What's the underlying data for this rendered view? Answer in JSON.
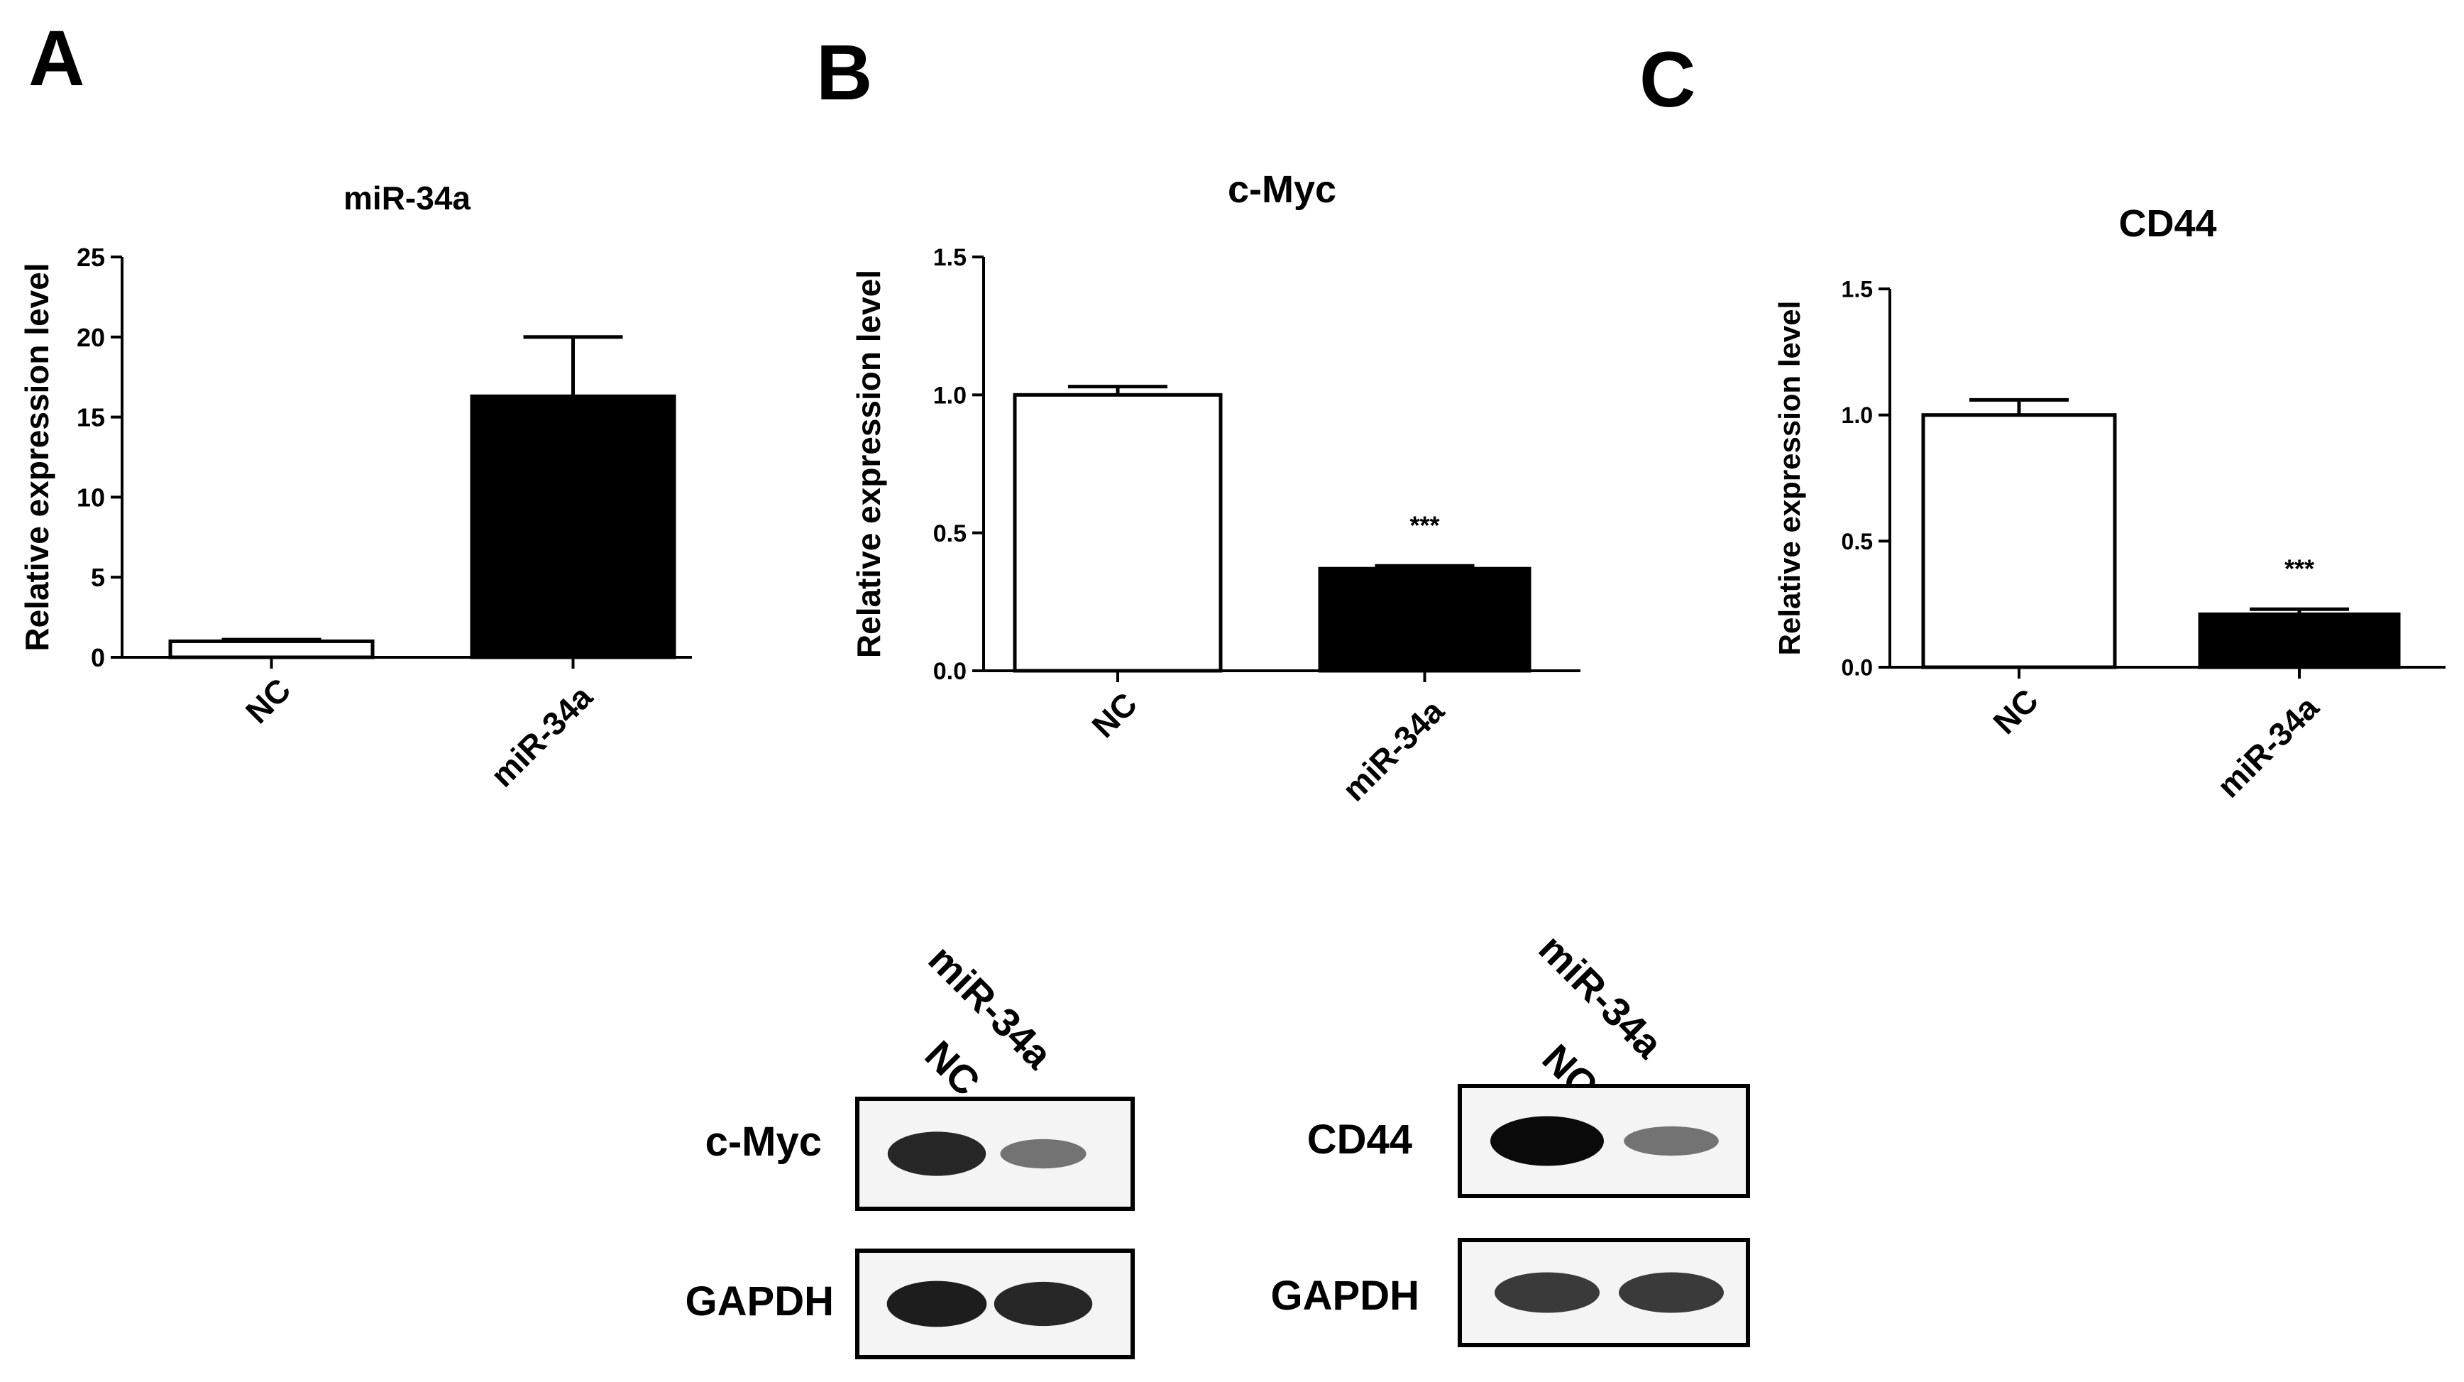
{
  "panels": [
    {
      "letter": "A"
    },
    {
      "letter": "B"
    },
    {
      "letter": "C"
    }
  ],
  "chart_data": [
    {
      "type": "bar",
      "title": "miR-34a",
      "xlabel": "",
      "ylabel": "Relative expression level",
      "categories": [
        "NC",
        "miR-34a"
      ],
      "values": [
        1.0,
        16.3
      ],
      "errors": [
        0.1,
        3.7
      ],
      "bar_colors": [
        "#ffffff",
        "#000000"
      ],
      "significance": [
        "",
        ""
      ],
      "ylim": [
        0,
        25
      ],
      "yticks": [
        0,
        5,
        10,
        15,
        20,
        25
      ],
      "ytick_labels": [
        "0",
        "5",
        "10",
        "15",
        "20",
        "25"
      ],
      "grid": false
    },
    {
      "type": "bar",
      "title": "c-Myc",
      "xlabel": "",
      "ylabel": "Relative expression level",
      "categories": [
        "NC",
        "miR-34a"
      ],
      "values": [
        1.0,
        0.37
      ],
      "errors": [
        0.03,
        0.01
      ],
      "bar_colors": [
        "#ffffff",
        "#000000"
      ],
      "significance": [
        "",
        "***"
      ],
      "ylim": [
        0,
        1.5
      ],
      "yticks": [
        0,
        0.5,
        1.0,
        1.5
      ],
      "ytick_labels": [
        "0.0",
        "0.5",
        "1.0",
        "1.5"
      ],
      "grid": false
    },
    {
      "type": "bar",
      "title": "CD44",
      "xlabel": "",
      "ylabel": "Relative expression level",
      "categories": [
        "NC",
        "miR-34a"
      ],
      "values": [
        1.0,
        0.21
      ],
      "errors": [
        0.06,
        0.02
      ],
      "bar_colors": [
        "#ffffff",
        "#000000"
      ],
      "significance": [
        "",
        "***"
      ],
      "ylim": [
        0,
        1.5
      ],
      "yticks": [
        0,
        0.5,
        1.0,
        1.5
      ],
      "ytick_labels": [
        "0.0",
        "0.5",
        "1.0",
        "1.5"
      ],
      "grid": false
    }
  ],
  "blots": [
    {
      "lanes": [
        "NC",
        "miR-34a"
      ],
      "rows": [
        {
          "label": "c-Myc",
          "band_intensity": [
            0.85,
            0.45
          ]
        },
        {
          "label": "GAPDH",
          "band_intensity": [
            0.9,
            0.85
          ]
        }
      ]
    },
    {
      "lanes": [
        "NC",
        "miR-34a"
      ],
      "rows": [
        {
          "label": "CD44",
          "band_intensity": [
            1.0,
            0.45
          ]
        },
        {
          "label": "GAPDH",
          "band_intensity": [
            0.75,
            0.75
          ]
        }
      ]
    }
  ]
}
